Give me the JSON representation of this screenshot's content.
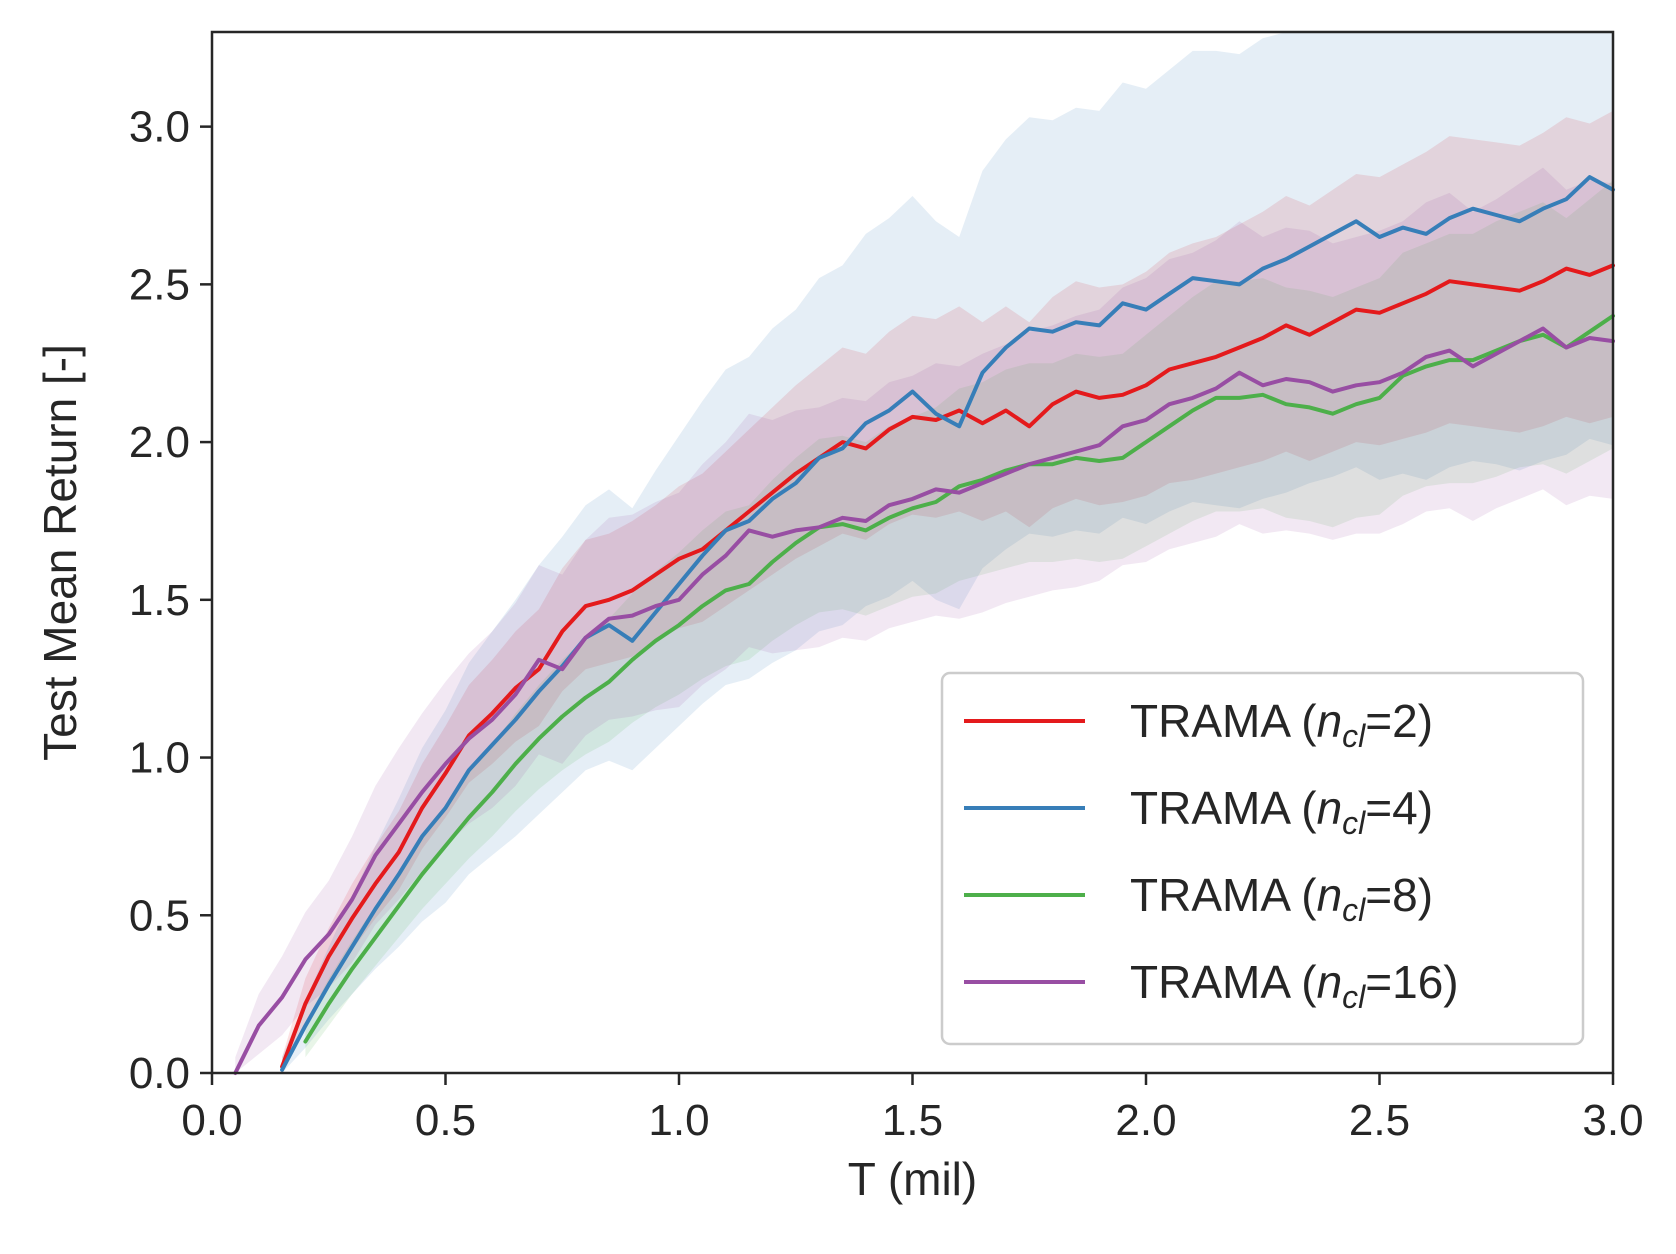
{
  "chart_data": {
    "type": "line",
    "title": "",
    "xlabel": "T (mil)",
    "ylabel": "Test Mean Return [-]",
    "xlim": [
      0.0,
      3.0
    ],
    "ylim": [
      0.0,
      3.3
    ],
    "xticks": [
      0.0,
      0.5,
      1.0,
      1.5,
      2.0,
      2.5,
      3.0
    ],
    "xtick_labels": [
      "0.0",
      "0.5",
      "1.0",
      "1.5",
      "2.0",
      "2.5",
      "3.0"
    ],
    "yticks": [
      0.0,
      0.5,
      1.0,
      1.5,
      2.0,
      2.5,
      3.0
    ],
    "ytick_labels": [
      "0.0",
      "0.5",
      "1.0",
      "1.5",
      "2.0",
      "2.5",
      "3.0"
    ],
    "grid": false,
    "legend_position": "lower-right",
    "x": [
      0.05,
      0.1,
      0.15,
      0.2,
      0.25,
      0.3,
      0.35,
      0.4,
      0.45,
      0.5,
      0.55,
      0.6,
      0.65,
      0.7,
      0.75,
      0.8,
      0.85,
      0.9,
      0.95,
      1.0,
      1.05,
      1.1,
      1.15,
      1.2,
      1.25,
      1.3,
      1.35,
      1.4,
      1.45,
      1.5,
      1.55,
      1.6,
      1.65,
      1.7,
      1.75,
      1.8,
      1.85,
      1.9,
      1.95,
      2.0,
      2.05,
      2.1,
      2.15,
      2.2,
      2.25,
      2.3,
      2.35,
      2.4,
      2.45,
      2.5,
      2.55,
      2.6,
      2.65,
      2.7,
      2.75,
      2.8,
      2.85,
      2.9,
      2.95,
      3.0
    ],
    "series": [
      {
        "name": "TRAMA (n_cl=2)",
        "legend_prefix": "TRAMA (",
        "legend_symbol": "n",
        "legend_subscript": "cl",
        "legend_suffix": "=2)",
        "color": "#e41a1c",
        "values": [
          null,
          null,
          0.02,
          0.22,
          0.37,
          0.49,
          0.6,
          0.7,
          0.84,
          0.95,
          1.07,
          1.14,
          1.22,
          1.28,
          1.4,
          1.48,
          1.5,
          1.53,
          1.58,
          1.63,
          1.66,
          1.72,
          1.78,
          1.84,
          1.9,
          1.95,
          2.0,
          1.98,
          2.04,
          2.08,
          2.07,
          2.1,
          2.06,
          2.1,
          2.05,
          2.12,
          2.16,
          2.14,
          2.15,
          2.18,
          2.23,
          2.25,
          2.27,
          2.3,
          2.33,
          2.37,
          2.34,
          2.38,
          2.42,
          2.41,
          2.44,
          2.47,
          2.51,
          2.5,
          2.49,
          2.48,
          2.51,
          2.55,
          2.53,
          2.56
        ],
        "lower": [
          null,
          null,
          0.0,
          0.15,
          0.28,
          0.39,
          0.49,
          0.58,
          0.71,
          0.81,
          0.92,
          0.98,
          1.05,
          1.1,
          1.21,
          1.28,
          1.3,
          1.32,
          1.37,
          1.41,
          1.43,
          1.48,
          1.53,
          1.58,
          1.63,
          1.67,
          1.71,
          1.69,
          1.74,
          1.77,
          1.76,
          1.78,
          1.75,
          1.78,
          1.73,
          1.79,
          1.82,
          1.8,
          1.81,
          1.83,
          1.87,
          1.88,
          1.9,
          1.92,
          1.94,
          1.97,
          1.94,
          1.97,
          2.0,
          1.99,
          2.01,
          2.03,
          2.06,
          2.05,
          2.04,
          2.03,
          2.05,
          2.08,
          2.06,
          2.08
        ],
        "upper": [
          null,
          null,
          0.05,
          0.3,
          0.46,
          0.6,
          0.72,
          0.83,
          0.98,
          1.1,
          1.23,
          1.31,
          1.4,
          1.47,
          1.6,
          1.69,
          1.71,
          1.75,
          1.8,
          1.86,
          1.9,
          1.97,
          2.04,
          2.11,
          2.18,
          2.24,
          2.3,
          2.28,
          2.35,
          2.4,
          2.39,
          2.43,
          2.38,
          2.43,
          2.38,
          2.46,
          2.51,
          2.49,
          2.5,
          2.54,
          2.6,
          2.63,
          2.65,
          2.69,
          2.73,
          2.78,
          2.75,
          2.8,
          2.85,
          2.84,
          2.88,
          2.92,
          2.97,
          2.96,
          2.95,
          2.94,
          2.98,
          3.03,
          3.01,
          3.05
        ]
      },
      {
        "name": "TRAMA (n_cl=4)",
        "legend_prefix": "TRAMA (",
        "legend_symbol": "n",
        "legend_subscript": "cl",
        "legend_suffix": "=4)",
        "color": "#377eb8",
        "values": [
          null,
          null,
          0.01,
          0.15,
          0.28,
          0.4,
          0.52,
          0.63,
          0.75,
          0.84,
          0.96,
          1.04,
          1.12,
          1.21,
          1.29,
          1.38,
          1.42,
          1.37,
          1.46,
          1.55,
          1.64,
          1.72,
          1.75,
          1.82,
          1.87,
          1.95,
          1.98,
          2.06,
          2.1,
          2.16,
          2.09,
          2.05,
          2.22,
          2.3,
          2.36,
          2.35,
          2.38,
          2.37,
          2.44,
          2.42,
          2.47,
          2.52,
          2.51,
          2.5,
          2.55,
          2.58,
          2.62,
          2.66,
          2.7,
          2.65,
          2.68,
          2.66,
          2.71,
          2.74,
          2.72,
          2.7,
          2.74,
          2.77,
          2.84,
          2.8
        ],
        "lower": [
          null,
          null,
          0.0,
          0.08,
          0.17,
          0.25,
          0.33,
          0.4,
          0.48,
          0.54,
          0.63,
          0.69,
          0.75,
          0.82,
          0.89,
          0.96,
          0.99,
          0.96,
          1.03,
          1.1,
          1.17,
          1.23,
          1.25,
          1.3,
          1.34,
          1.4,
          1.42,
          1.48,
          1.51,
          1.56,
          1.5,
          1.47,
          1.6,
          1.66,
          1.71,
          1.7,
          1.72,
          1.71,
          1.76,
          1.74,
          1.78,
          1.81,
          1.8,
          1.79,
          1.82,
          1.84,
          1.87,
          1.89,
          1.92,
          1.88,
          1.9,
          1.88,
          1.92,
          1.94,
          1.93,
          1.91,
          1.94,
          1.96,
          2.01,
          1.99
        ],
        "upper": [
          null,
          null,
          0.05,
          0.23,
          0.4,
          0.56,
          0.72,
          0.87,
          1.03,
          1.15,
          1.3,
          1.4,
          1.5,
          1.61,
          1.7,
          1.8,
          1.85,
          1.79,
          1.91,
          2.02,
          2.13,
          2.23,
          2.27,
          2.36,
          2.42,
          2.52,
          2.56,
          2.66,
          2.71,
          2.78,
          2.7,
          2.65,
          2.86,
          2.96,
          3.03,
          3.02,
          3.06,
          3.05,
          3.14,
          3.12,
          3.18,
          3.24,
          3.24,
          3.23,
          3.28,
          3.3,
          3.3,
          3.3,
          3.3,
          3.3,
          3.3,
          3.3,
          3.3,
          3.3,
          3.3,
          3.3,
          3.3,
          3.3,
          3.3,
          3.3
        ]
      },
      {
        "name": "TRAMA (n_cl=8)",
        "legend_prefix": "TRAMA (",
        "legend_symbol": "n",
        "legend_subscript": "cl",
        "legend_suffix": "=8)",
        "color": "#4daf4a",
        "values": [
          null,
          null,
          null,
          0.1,
          0.22,
          0.33,
          0.43,
          0.53,
          0.63,
          0.72,
          0.81,
          0.89,
          0.98,
          1.06,
          1.13,
          1.19,
          1.24,
          1.31,
          1.37,
          1.42,
          1.48,
          1.53,
          1.55,
          1.62,
          1.68,
          1.73,
          1.74,
          1.72,
          1.76,
          1.79,
          1.81,
          1.86,
          1.88,
          1.91,
          1.93,
          1.93,
          1.95,
          1.94,
          1.95,
          2.0,
          2.05,
          2.1,
          2.14,
          2.14,
          2.15,
          2.12,
          2.11,
          2.09,
          2.12,
          2.14,
          2.21,
          2.24,
          2.26,
          2.26,
          2.29,
          2.32,
          2.34,
          2.3,
          2.35,
          2.4
        ],
        "lower": [
          null,
          null,
          null,
          0.05,
          0.15,
          0.25,
          0.34,
          0.43,
          0.52,
          0.6,
          0.68,
          0.75,
          0.83,
          0.9,
          0.96,
          1.01,
          1.05,
          1.11,
          1.16,
          1.2,
          1.25,
          1.29,
          1.31,
          1.37,
          1.42,
          1.46,
          1.47,
          1.45,
          1.48,
          1.51,
          1.52,
          1.56,
          1.58,
          1.6,
          1.62,
          1.62,
          1.63,
          1.62,
          1.63,
          1.67,
          1.71,
          1.75,
          1.78,
          1.78,
          1.79,
          1.76,
          1.75,
          1.73,
          1.76,
          1.77,
          1.83,
          1.86,
          1.87,
          1.87,
          1.89,
          1.92,
          1.93,
          1.9,
          1.94,
          1.98
        ],
        "upper": [
          null,
          null,
          null,
          0.16,
          0.3,
          0.42,
          0.53,
          0.64,
          0.75,
          0.85,
          0.95,
          1.04,
          1.14,
          1.23,
          1.31,
          1.38,
          1.44,
          1.52,
          1.59,
          1.65,
          1.72,
          1.78,
          1.8,
          1.88,
          1.95,
          2.01,
          2.02,
          2.0,
          2.05,
          2.08,
          2.11,
          2.17,
          2.19,
          2.23,
          2.25,
          2.25,
          2.28,
          2.27,
          2.28,
          2.34,
          2.4,
          2.46,
          2.51,
          2.51,
          2.52,
          2.49,
          2.48,
          2.46,
          2.49,
          2.52,
          2.6,
          2.63,
          2.66,
          2.66,
          2.7,
          2.73,
          2.76,
          2.71,
          2.77,
          2.83
        ]
      },
      {
        "name": "TRAMA (n_cl=16)",
        "legend_prefix": "TRAMA (",
        "legend_symbol": "n",
        "legend_subscript": "cl",
        "legend_suffix": "=16)",
        "color": "#984ea3",
        "values": [
          0.0,
          0.15,
          0.24,
          0.36,
          0.44,
          0.55,
          0.69,
          0.79,
          0.89,
          0.98,
          1.06,
          1.12,
          1.2,
          1.31,
          1.28,
          1.38,
          1.44,
          1.45,
          1.48,
          1.5,
          1.58,
          1.64,
          1.72,
          1.7,
          1.72,
          1.73,
          1.76,
          1.75,
          1.8,
          1.82,
          1.85,
          1.84,
          1.87,
          1.9,
          1.93,
          1.95,
          1.97,
          1.99,
          2.05,
          2.07,
          2.12,
          2.14,
          2.17,
          2.22,
          2.18,
          2.2,
          2.19,
          2.16,
          2.18,
          2.19,
          2.22,
          2.27,
          2.29,
          2.24,
          2.28,
          2.32,
          2.36,
          2.3,
          2.33,
          2.32
        ],
        "lower": [
          0.0,
          0.06,
          0.12,
          0.21,
          0.27,
          0.35,
          0.47,
          0.55,
          0.64,
          0.72,
          0.79,
          0.84,
          0.91,
          1.01,
          0.98,
          1.07,
          1.12,
          1.13,
          1.15,
          1.16,
          1.23,
          1.28,
          1.35,
          1.33,
          1.34,
          1.35,
          1.38,
          1.37,
          1.41,
          1.43,
          1.45,
          1.44,
          1.46,
          1.49,
          1.51,
          1.53,
          1.54,
          1.56,
          1.61,
          1.62,
          1.66,
          1.68,
          1.7,
          1.74,
          1.71,
          1.72,
          1.71,
          1.69,
          1.71,
          1.71,
          1.74,
          1.78,
          1.79,
          1.75,
          1.79,
          1.82,
          1.85,
          1.8,
          1.83,
          1.82
        ],
        "upper": [
          0.05,
          0.25,
          0.37,
          0.51,
          0.61,
          0.75,
          0.91,
          1.03,
          1.14,
          1.24,
          1.33,
          1.4,
          1.49,
          1.61,
          1.58,
          1.69,
          1.76,
          1.77,
          1.81,
          1.84,
          1.93,
          2.0,
          2.09,
          2.07,
          2.1,
          2.11,
          2.14,
          2.13,
          2.19,
          2.21,
          2.25,
          2.24,
          2.28,
          2.31,
          2.35,
          2.37,
          2.4,
          2.42,
          2.49,
          2.52,
          2.58,
          2.6,
          2.64,
          2.7,
          2.65,
          2.68,
          2.67,
          2.63,
          2.65,
          2.67,
          2.7,
          2.76,
          2.79,
          2.73,
          2.77,
          2.82,
          2.87,
          2.8,
          2.83,
          2.82
        ]
      }
    ]
  }
}
